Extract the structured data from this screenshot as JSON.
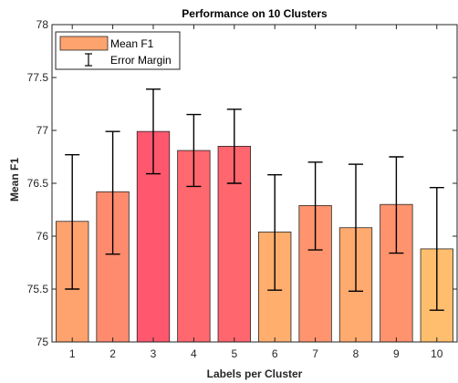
{
  "chart_data": {
    "type": "bar",
    "title": "Performance on 10 Clusters",
    "xlabel": "Labels per Cluster",
    "ylabel": "Mean F1",
    "categories": [
      "1",
      "2",
      "3",
      "4",
      "5",
      "6",
      "7",
      "8",
      "9",
      "10"
    ],
    "values": [
      76.14,
      76.42,
      76.99,
      76.81,
      76.85,
      76.04,
      76.29,
      76.08,
      76.3,
      75.88
    ],
    "error_low": [
      75.5,
      75.83,
      76.59,
      76.47,
      76.5,
      75.49,
      75.87,
      75.48,
      75.84,
      75.3
    ],
    "error_high": [
      76.77,
      76.99,
      77.39,
      77.15,
      77.2,
      76.58,
      76.7,
      76.68,
      76.75,
      76.46
    ],
    "bar_colors": [
      "#ffa36e",
      "#ff8b6e",
      "#ff586e",
      "#ff686e",
      "#ff666e",
      "#ffae6e",
      "#ff946e",
      "#ffaa6e",
      "#ff936e",
      "#ffbe6e"
    ],
    "ylim": [
      75,
      78
    ],
    "yticks": [
      "75",
      "75.5",
      "76",
      "76.5",
      "77",
      "77.5",
      "78"
    ],
    "ytick_values": [
      75,
      75.5,
      76,
      76.5,
      77,
      77.5,
      78
    ],
    "grid": false,
    "legend": {
      "position": "top-left",
      "entries": [
        "Mean F1",
        "Error Margin"
      ],
      "swatch_color": "#ffa36e"
    }
  }
}
